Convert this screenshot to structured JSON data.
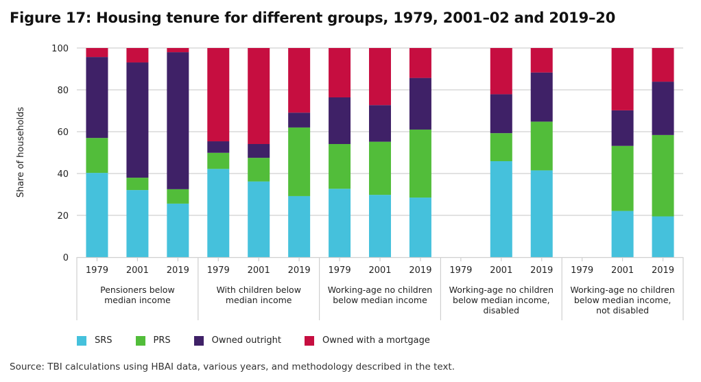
{
  "chart_data": {
    "type": "bar",
    "stacked": true,
    "title": "Figure 17: Housing tenure for different groups, 1979, 2001–02 and 2019–20",
    "xlabel": "",
    "ylabel": "Share of households",
    "ylim": [
      0,
      100
    ],
    "yticks": [
      0,
      20,
      40,
      60,
      80,
      100
    ],
    "grid": true,
    "legend_position": "bottom",
    "groups": [
      {
        "label": "Pensioners below median income",
        "label_lines": [
          "Pensioners below",
          "median income"
        ]
      },
      {
        "label": "With children below median income",
        "label_lines": [
          "With children below",
          "median income"
        ]
      },
      {
        "label": "Working-age no children below median income",
        "label_lines": [
          "Working-age no children",
          "below median income"
        ]
      },
      {
        "label": "Working-age no children below median income, disabled",
        "label_lines": [
          "Working-age no children",
          "below median income,",
          "disabled"
        ]
      },
      {
        "label": "Working-age no children below median income, not disabled",
        "label_lines": [
          "Working-age no children",
          "below median income,",
          "not disabled"
        ]
      }
    ],
    "categories": [
      "1979",
      "2001",
      "2019"
    ],
    "series": [
      {
        "name": "SRS",
        "color": "#45c1dc",
        "values": [
          [
            40.3,
            32.1,
            25.6
          ],
          [
            42.2,
            36.2,
            29.2
          ],
          [
            32.7,
            29.8,
            28.5
          ],
          [
            null,
            45.9,
            41.5
          ],
          [
            null,
            22.1,
            19.5
          ]
        ]
      },
      {
        "name": "PRS",
        "color": "#52bd3a",
        "values": [
          [
            16.7,
            5.9,
            6.9
          ],
          [
            7.7,
            11.3,
            32.8
          ],
          [
            21.4,
            25.4,
            32.5
          ],
          [
            null,
            13.4,
            23.3
          ],
          [
            null,
            31.1,
            38.9
          ]
        ]
      },
      {
        "name": "Owned outright",
        "color": "#3f2167",
        "values": [
          [
            38.7,
            55.1,
            65.5
          ],
          [
            5.5,
            6.6,
            7.1
          ],
          [
            22.3,
            17.5,
            24.7
          ],
          [
            null,
            18.6,
            23.5
          ],
          [
            null,
            17.0,
            25.5
          ]
        ]
      },
      {
        "name": "Owned with a mortgage",
        "color": "#c60e40",
        "values": [
          [
            4.3,
            6.9,
            2.0
          ],
          [
            44.6,
            45.9,
            30.9
          ],
          [
            23.6,
            27.3,
            14.3
          ],
          [
            null,
            22.1,
            11.7
          ],
          [
            null,
            29.8,
            16.1
          ]
        ]
      }
    ]
  },
  "source": "Source: TBI calculations using HBAI data, various years, and methodology described in the text."
}
